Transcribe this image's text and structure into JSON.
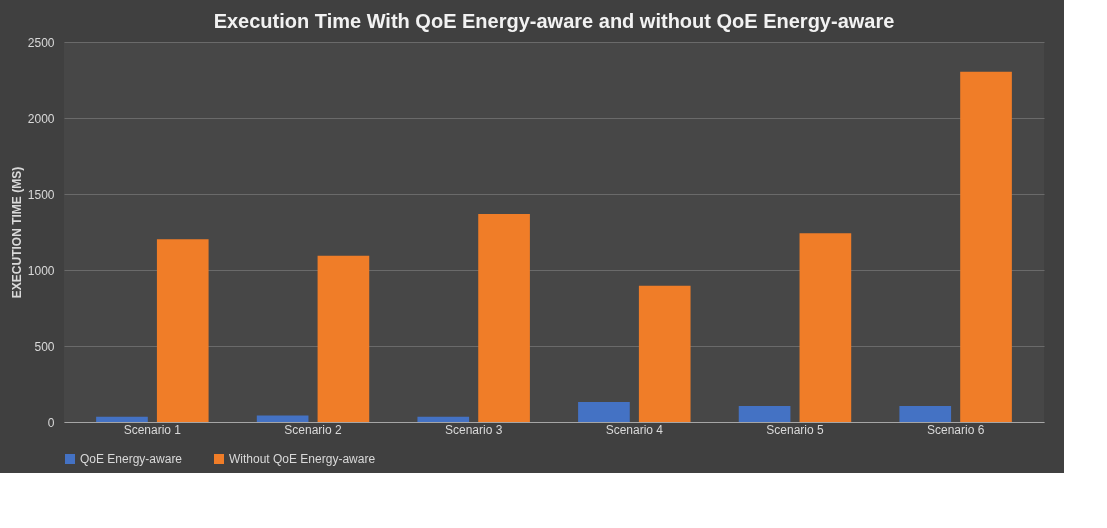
{
  "chart_data": {
    "type": "bar",
    "title": "Execution Time With QoE Energy-aware and without QoE Energy-aware",
    "ylabel": "EXECUTION TIME (MS)",
    "categories": [
      "Scenario 1",
      "Scenario 2",
      "Scenario 3",
      "Scenario 4",
      "Scenario 5",
      "Scenario 6"
    ],
    "series": [
      {
        "name": "QoE Energy-aware",
        "color": "#4472c4",
        "values": [
          35,
          42,
          35,
          132,
          106,
          106
        ]
      },
      {
        "name": "Without QoE Energy-aware",
        "color": "#f07d28",
        "values": [
          1202,
          1094,
          1369,
          896,
          1241,
          2304
        ]
      }
    ],
    "ylim": [
      0,
      2500
    ],
    "yticks": [
      0,
      500,
      1000,
      1500,
      2000,
      2500
    ],
    "grid": "y",
    "legend": "bottom"
  }
}
